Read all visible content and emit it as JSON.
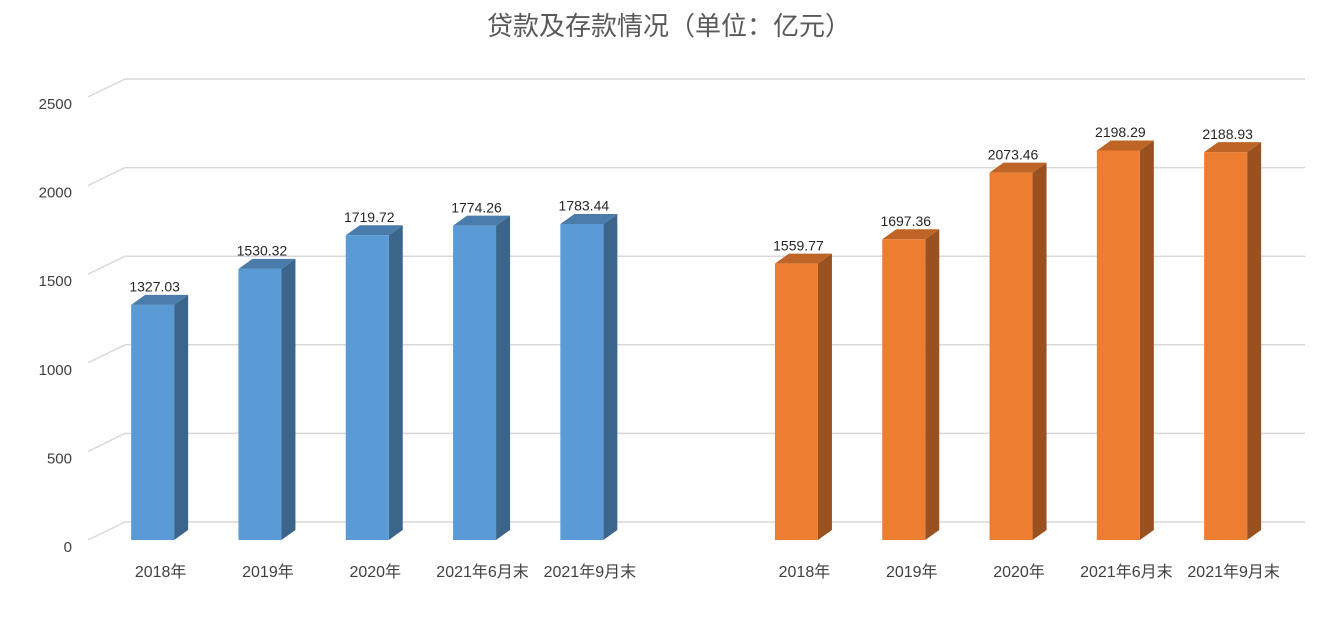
{
  "chart_data": {
    "type": "bar3d",
    "title": "贷款及存款情况（单位：亿元）",
    "categories": [
      "2018年",
      "2019年",
      "2020年",
      "2021年6月末",
      "2021年9月末",
      null,
      "2018年",
      "2019年",
      "2020年",
      "2021年6月末",
      "2021年9月末"
    ],
    "series": [
      {
        "color": "#5b9bd5",
        "values": [
          1327.03,
          1530.32,
          1719.72,
          1774.26,
          1783.44,
          null,
          null,
          null,
          null,
          null,
          null
        ]
      },
      {
        "color": "#ed7d31",
        "values": [
          null,
          null,
          null,
          null,
          null,
          null,
          1559.77,
          1697.36,
          2073.46,
          2198.29,
          2188.93
        ]
      }
    ],
    "ylim": [
      0,
      2500
    ],
    "yticks": [
      0,
      500,
      1000,
      1500,
      2000,
      2500
    ],
    "grid": true
  }
}
